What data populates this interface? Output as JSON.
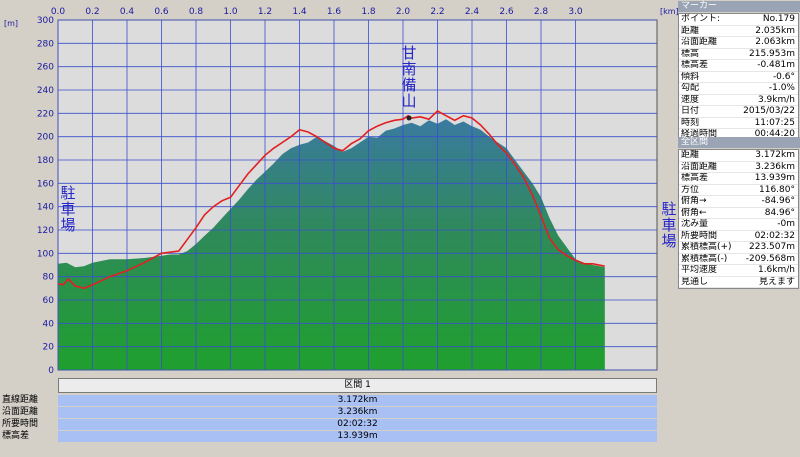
{
  "chart_data": {
    "type": "area",
    "x_unit": "[km]",
    "y_unit": "[m]",
    "xlim": [
      0.0,
      3.17
    ],
    "ylim": [
      0,
      300
    ],
    "x_ticks": [
      "0.0",
      "0.2",
      "0.4",
      "0.6",
      "0.8",
      "1.0",
      "1.2",
      "1.4",
      "1.6",
      "1.8",
      "2.0",
      "2.2",
      "2.4",
      "2.6",
      "2.8",
      "3.0"
    ],
    "y_ticks": [
      "0",
      "20",
      "40",
      "60",
      "80",
      "100",
      "120",
      "140",
      "160",
      "180",
      "200",
      "220",
      "240",
      "260",
      "280",
      "300"
    ],
    "series": [
      {
        "color": "#2b9a3a",
        "x": [
          0.0,
          0.05,
          0.1,
          0.15,
          0.2,
          0.3,
          0.4,
          0.5,
          0.6,
          0.65,
          0.7,
          0.75,
          0.8,
          0.85,
          0.9,
          0.95,
          1.0,
          1.05,
          1.1,
          1.15,
          1.2,
          1.25,
          1.3,
          1.35,
          1.4,
          1.45,
          1.5,
          1.55,
          1.6,
          1.65,
          1.7,
          1.75,
          1.8,
          1.85,
          1.9,
          1.95,
          2.0,
          2.05,
          2.1,
          2.15,
          2.2,
          2.25,
          2.3,
          2.35,
          2.4,
          2.45,
          2.5,
          2.55,
          2.6,
          2.65,
          2.7,
          2.75,
          2.8,
          2.85,
          2.9,
          2.95,
          3.0,
          3.05,
          3.1,
          3.17
        ],
        "y": [
          91,
          92,
          88,
          89,
          92,
          95,
          95,
          96,
          98,
          99,
          99,
          102,
          108,
          115,
          122,
          130,
          138,
          146,
          155,
          163,
          170,
          177,
          185,
          190,
          193,
          195,
          200,
          196,
          192,
          187,
          190,
          195,
          200,
          199,
          205,
          207,
          210,
          212,
          209,
          214,
          211,
          215,
          210,
          213,
          209,
          206,
          200,
          195,
          190,
          180,
          170,
          160,
          148,
          130,
          115,
          105,
          95,
          92,
          90,
          88
        ]
      },
      {
        "color": "#e32020",
        "x": [
          0.0,
          0.03,
          0.06,
          0.1,
          0.15,
          0.2,
          0.3,
          0.4,
          0.5,
          0.55,
          0.6,
          0.65,
          0.7,
          0.75,
          0.8,
          0.85,
          0.9,
          0.95,
          1.0,
          1.05,
          1.1,
          1.15,
          1.2,
          1.25,
          1.3,
          1.35,
          1.4,
          1.45,
          1.5,
          1.55,
          1.6,
          1.65,
          1.7,
          1.75,
          1.8,
          1.85,
          1.9,
          1.95,
          2.0,
          2.03,
          2.05,
          2.1,
          2.15,
          2.2,
          2.25,
          2.3,
          2.35,
          2.4,
          2.45,
          2.5,
          2.55,
          2.6,
          2.65,
          2.7,
          2.75,
          2.8,
          2.85,
          2.9,
          2.95,
          3.0,
          3.05,
          3.1,
          3.17
        ],
        "y": [
          74,
          73,
          78,
          72,
          70,
          73,
          80,
          85,
          92,
          96,
          100,
          101,
          102,
          112,
          122,
          133,
          140,
          145,
          148,
          158,
          168,
          176,
          184,
          190,
          195,
          200,
          206,
          204,
          200,
          195,
          190,
          188,
          194,
          198,
          205,
          209,
          212,
          214,
          215,
          218,
          216,
          217,
          215,
          222,
          218,
          214,
          218,
          216,
          210,
          202,
          193,
          186,
          176,
          165,
          150,
          132,
          113,
          103,
          98,
          94,
          91,
          91,
          89
        ]
      }
    ],
    "annotations": [
      {
        "text": "駐車場",
        "x": 0.0
      },
      {
        "text": "甘南備山",
        "x": 2.035,
        "y": 216
      },
      {
        "text": "駐車場",
        "x": 3.17
      }
    ]
  },
  "marker_point_km": 2.035,
  "marker_elev_m": 216,
  "section": {
    "header": "区間 1",
    "rows": [
      {
        "label": "直線距離",
        "value": "3.172km"
      },
      {
        "label": "沿面距離",
        "value": "3.236km"
      },
      {
        "label": "所要時間",
        "value": "02:02:32"
      },
      {
        "label": "標高差",
        "value": "13.939m"
      }
    ]
  },
  "marker_panel": {
    "title": "マーカー",
    "rows": [
      {
        "key": "ポイント:",
        "value": "No.179"
      },
      {
        "key": "距離",
        "value": "2.035km"
      },
      {
        "key": "沿面距離",
        "value": "2.063km"
      },
      {
        "key": "標高",
        "value": "215.953m"
      },
      {
        "key": "標高差",
        "value": "-0.481m"
      },
      {
        "key": "傾斜",
        "value": "-0.6°"
      },
      {
        "key": "勾配",
        "value": "-1.0%"
      },
      {
        "key": "速度",
        "value": "3.9km/h"
      },
      {
        "key": "日付",
        "value": "2015/03/22"
      },
      {
        "key": "時刻",
        "value": "11:07:25"
      },
      {
        "key": "経過時間",
        "value": "00:44:20"
      }
    ]
  },
  "section_panel": {
    "title": "全区間",
    "rows": [
      {
        "key": "距離",
        "value": "3.172km"
      },
      {
        "key": "沿面距離",
        "value": "3.236km"
      },
      {
        "key": "標高差",
        "value": "13.939m"
      },
      {
        "key": "方位",
        "value": "116.80°"
      },
      {
        "key": "俯角→",
        "value": "-84.96°"
      },
      {
        "key": "俯角←",
        "value": "84.96°"
      },
      {
        "key": "沈み量",
        "value": "-0m"
      },
      {
        "key": "所要時間",
        "value": "02:02:32"
      },
      {
        "key": "累積標高(+)",
        "value": "223.507m"
      },
      {
        "key": "累積標高(-)",
        "value": "-209.568m"
      },
      {
        "key": "平均速度",
        "value": "1.6km/h"
      },
      {
        "key": "見通し",
        "value": "見えます"
      }
    ]
  }
}
